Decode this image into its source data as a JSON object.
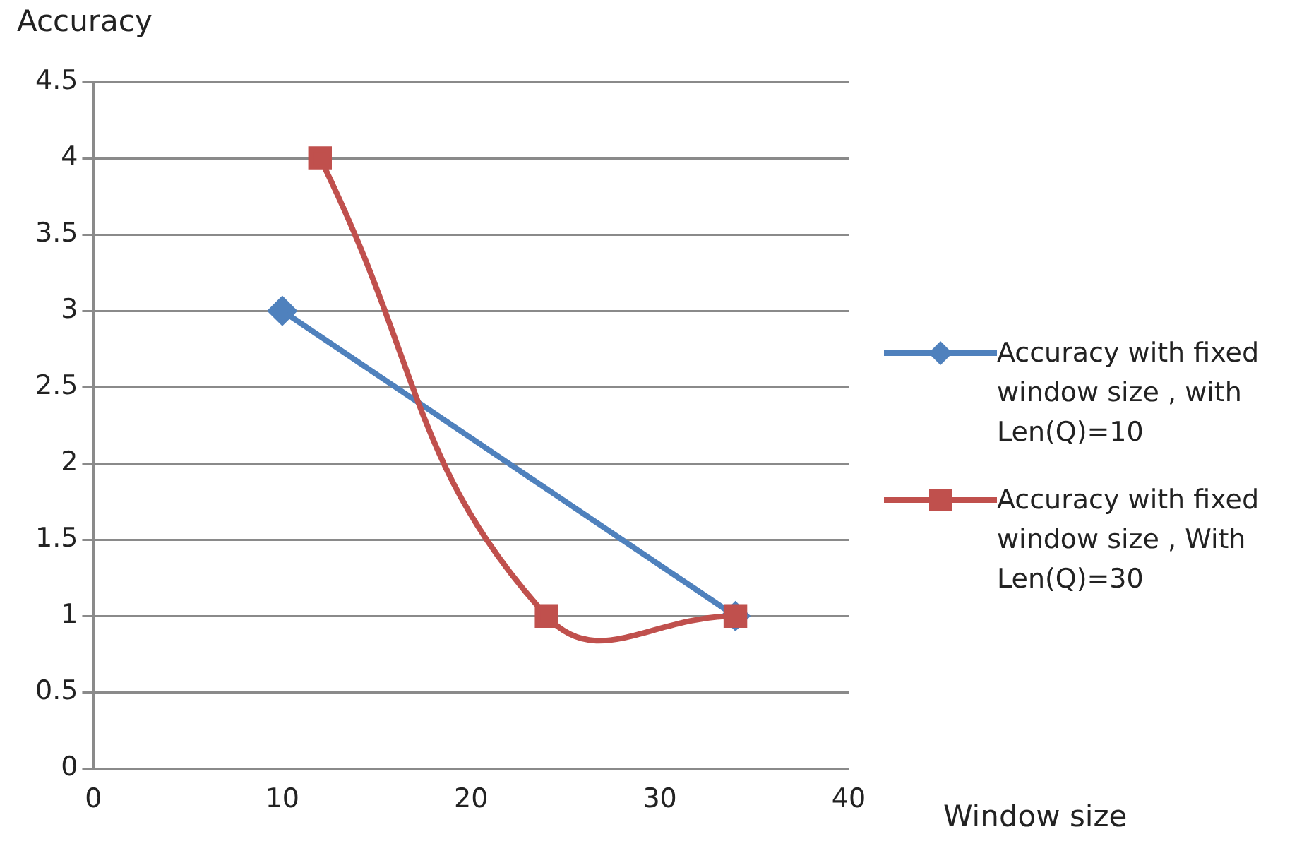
{
  "chart_data": {
    "type": "line",
    "ylabel": "Accuracy",
    "xlabel": "Window size",
    "xlim": [
      0,
      40
    ],
    "xticks": [
      0,
      10,
      20,
      30,
      40
    ],
    "ylim": [
      0,
      4.5
    ],
    "yticks": [
      0,
      0.5,
      1,
      1.5,
      2,
      2.5,
      3,
      3.5,
      4,
      4.5
    ],
    "grid": "y",
    "legend": "right",
    "line_style": "solid",
    "series": [
      {
        "name": "Accuracy with fixed window size , with Len(Q)=10",
        "color": "#4f81bd",
        "marker": "diamond",
        "x": [
          10,
          34
        ],
        "values": [
          3,
          1
        ]
      },
      {
        "name": "Accuracy with fixed window size , With Len(Q)=30",
        "color": "#c0504d",
        "marker": "square",
        "x": [
          12,
          24,
          34
        ],
        "values": [
          4,
          1,
          1
        ]
      }
    ]
  }
}
